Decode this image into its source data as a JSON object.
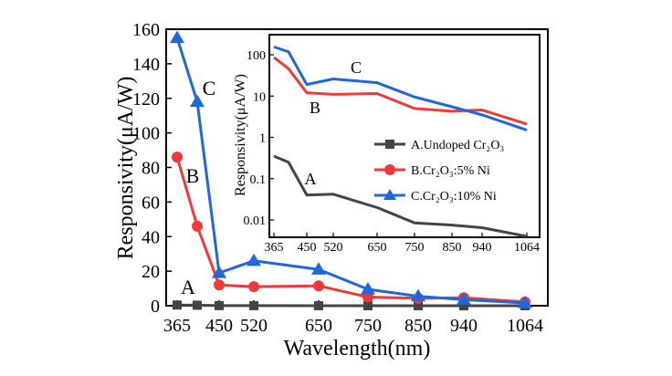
{
  "chart_data": [
    {
      "id": "main",
      "type": "line",
      "xlabel": "Wavelength(nm)",
      "ylabel": "Responsivity(μA/W)",
      "x_tick_labels": [
        "365",
        "450",
        "520",
        "650",
        "750",
        "850",
        "940",
        "1064"
      ],
      "y_ticks": [
        0,
        20,
        40,
        60,
        80,
        100,
        120,
        140,
        160
      ],
      "ylim": [
        0,
        160
      ],
      "grid": false,
      "x": [
        365,
        405,
        450,
        520,
        650,
        750,
        850,
        940,
        1064
      ],
      "series": [
        {
          "key": "A",
          "label": "A",
          "color": "#444444",
          "marker": "square",
          "values": [
            0.4,
            0.3,
            0.05,
            0.05,
            0.02,
            0.01,
            0.01,
            0.01,
            0.005
          ]
        },
        {
          "key": "B",
          "label": "B",
          "color": "#ee3a3a",
          "marker": "circle",
          "values": [
            86,
            46,
            12,
            11,
            11.5,
            5,
            4.3,
            4.6,
            2.2
          ]
        },
        {
          "key": "C",
          "label": "C",
          "color": "#2266dd",
          "marker": "triangle",
          "values": [
            155,
            118,
            19,
            26,
            21,
            9.5,
            5.5,
            3.5,
            1.6
          ]
        }
      ]
    },
    {
      "id": "inset",
      "type": "line",
      "ylabel": "Responsivity(μA/W)",
      "y_scale": "log",
      "ylim": [
        0.004,
        300
      ],
      "y_tick_labels": [
        "0.01",
        "0.1",
        "1",
        "10",
        "100"
      ],
      "x_tick_labels": [
        "365",
        "450",
        "520",
        "650",
        "750",
        "850",
        "940",
        "1064"
      ],
      "grid": false,
      "legend_position": "right",
      "x": [
        365,
        405,
        450,
        520,
        650,
        750,
        850,
        940,
        1064
      ],
      "series": [
        {
          "key": "A",
          "label": "A",
          "legend": "A.Undoped Cr₂O₃",
          "color": "#444444",
          "values": [
            0.35,
            0.25,
            0.04,
            0.042,
            0.02,
            0.0085,
            0.0075,
            0.0065,
            0.004
          ]
        },
        {
          "key": "B",
          "label": "B",
          "legend": "B.Cr₂O₃:5% Ni",
          "color": "#ee3a3a",
          "values": [
            86,
            46,
            12,
            11,
            11.5,
            5,
            4.3,
            4.6,
            2.1
          ]
        },
        {
          "key": "C",
          "label": "C",
          "legend": "C.Cr₂O₃:10% Ni",
          "color": "#2266dd",
          "values": [
            155,
            118,
            19,
            26,
            21,
            9.5,
            5.5,
            3.5,
            1.5
          ]
        }
      ]
    }
  ]
}
